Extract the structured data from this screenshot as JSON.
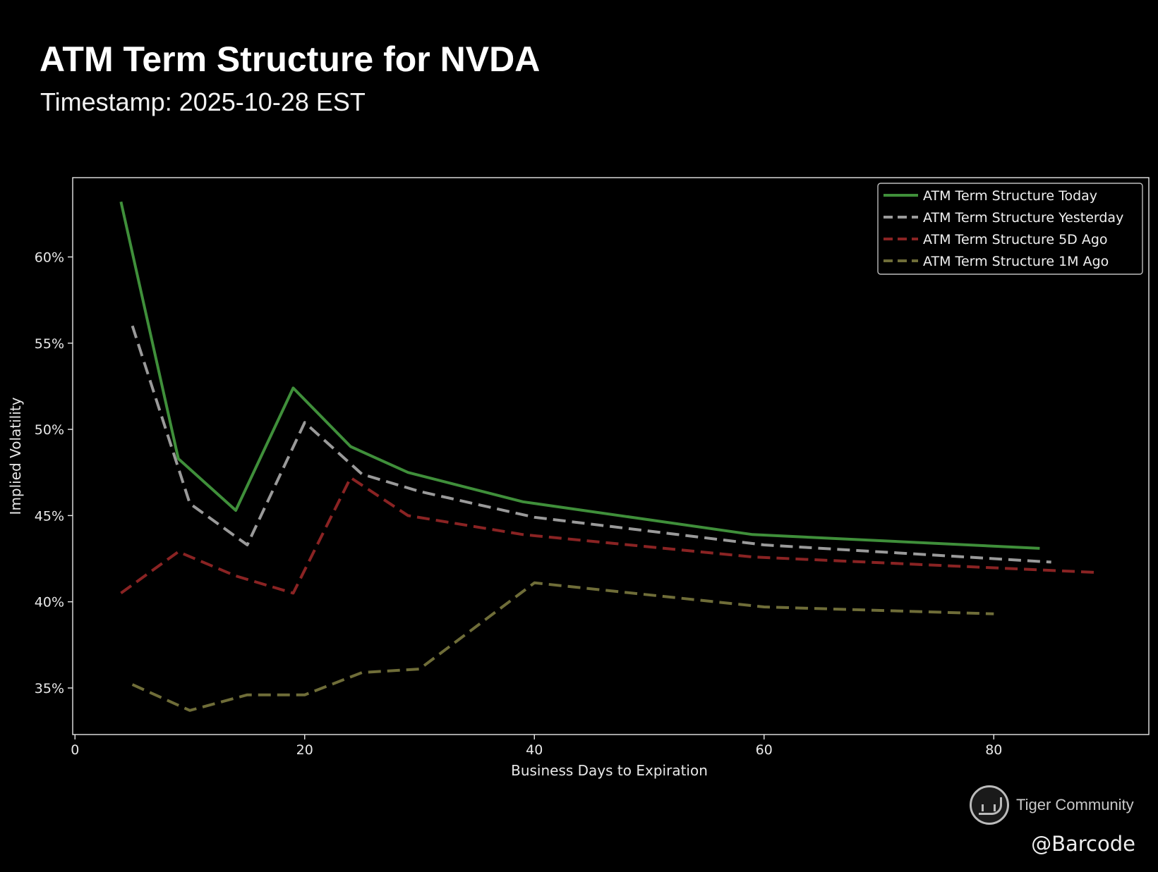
{
  "header": {
    "title": "ATM Term Structure for NVDA",
    "subtitle": "Timestamp: 2025-10-28 EST"
  },
  "watermark": {
    "brand": "Tiger Community",
    "handle": "@Barcode",
    "icon": "tiger-community-logo-icon"
  },
  "colors": {
    "background": "#000000",
    "axes": "#e8e8e8",
    "today": "#3f8f3a",
    "yesterday": "#9a9a9a",
    "five_day": "#8a2323",
    "one_month": "#6f6d38"
  },
  "chart_data": {
    "type": "line",
    "title": "ATM Term Structure for NVDA",
    "subtitle": "Timestamp: 2025-10-28 EST",
    "xlabel": "Business Days to Expiration",
    "ylabel": "Implied Volatility",
    "xlim": [
      -0.2,
      93.5
    ],
    "ylim": [
      32.3,
      64.6
    ],
    "xticks": [
      0,
      20,
      40,
      60,
      80
    ],
    "xtick_labels": [
      "0",
      "20",
      "40",
      "60",
      "80"
    ],
    "yticks": [
      35,
      40,
      45,
      50,
      55,
      60
    ],
    "ytick_labels": [
      "35%",
      "40%",
      "45%",
      "50%",
      "55%",
      "60%"
    ],
    "grid": false,
    "legend_position": "top-right",
    "series": [
      {
        "name": "ATM Term Structure Today",
        "style": "solid",
        "color": "#3f8f3a",
        "x": [
          4,
          9,
          14,
          19,
          24,
          29,
          39,
          59,
          84
        ],
        "y": [
          63.2,
          48.3,
          45.3,
          52.4,
          49.0,
          47.5,
          45.8,
          43.9,
          43.1
        ]
      },
      {
        "name": "ATM Term Structure Yesterday",
        "style": "dashed",
        "color": "#9a9a9a",
        "x": [
          5,
          10,
          15,
          20,
          25,
          30,
          40,
          60,
          85
        ],
        "y": [
          56.0,
          45.7,
          43.3,
          50.4,
          47.4,
          46.4,
          44.9,
          43.3,
          42.3
        ]
      },
      {
        "name": "ATM Term Structure 5D Ago",
        "style": "dashed",
        "color": "#8a2323",
        "x": [
          4,
          9,
          14,
          19,
          24,
          29,
          39,
          59,
          89
        ],
        "y": [
          40.5,
          42.9,
          41.5,
          40.5,
          47.2,
          45.0,
          43.9,
          42.6,
          41.7
        ]
      },
      {
        "name": "ATM Term Structure 1M Ago",
        "style": "dashed",
        "color": "#6f6d38",
        "x": [
          5,
          10,
          15,
          20,
          25,
          30,
          40,
          60,
          80
        ],
        "y": [
          35.2,
          33.7,
          34.6,
          34.6,
          35.9,
          36.1,
          41.1,
          39.7,
          39.3
        ]
      }
    ]
  }
}
